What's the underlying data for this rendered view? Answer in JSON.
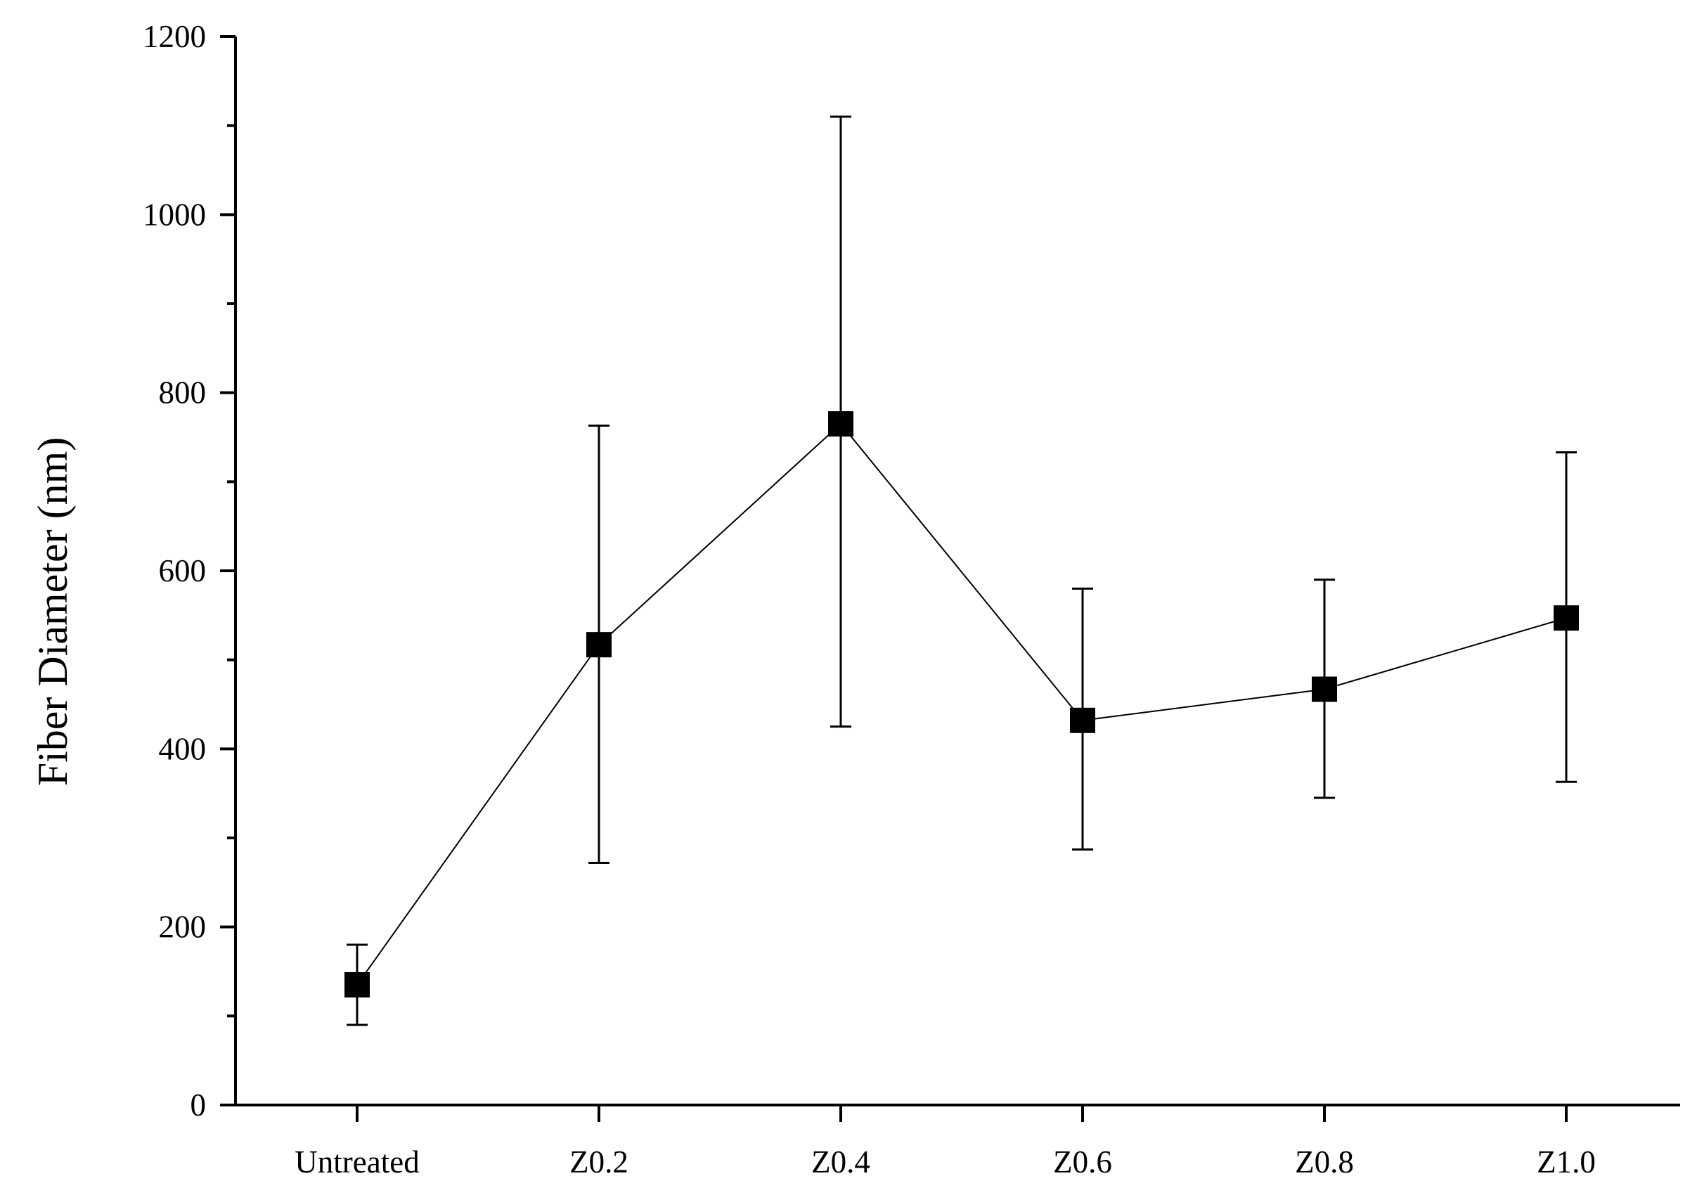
{
  "chart_data": {
    "type": "line",
    "title": "",
    "xlabel": "",
    "ylabel": "Fiber Diameter (nm)",
    "categories": [
      "Untreated",
      "Z0.2",
      "Z0.4",
      "Z0.6",
      "Z0.8",
      "Z1.0"
    ],
    "series": [
      {
        "values": [
          135,
          517,
          765,
          432,
          467,
          547
        ],
        "error_low": [
          90,
          272,
          425,
          287,
          345,
          363
        ],
        "error_high": [
          180,
          763,
          1110,
          580,
          590,
          733
        ],
        "marker": "square",
        "color": "#000000"
      }
    ],
    "ylim": [
      0,
      1200
    ],
    "yticks": [
      0,
      200,
      400,
      600,
      800,
      1000,
      1200
    ],
    "yminor_step": 100,
    "grid": false,
    "legend": "none"
  }
}
